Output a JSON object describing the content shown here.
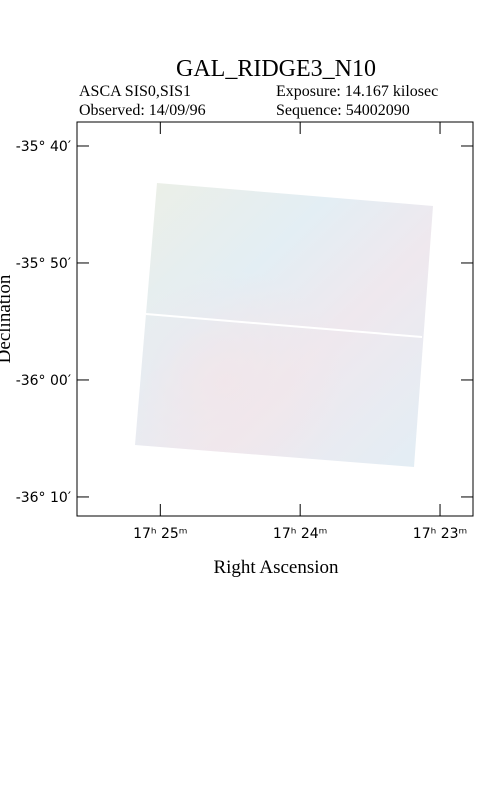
{
  "chart_data": {
    "type": "image",
    "title": "GAL_RIDGE3_N10",
    "instrument": "ASCA SIS0,SIS1",
    "exposure": "Exposure: 14.167 kilosec",
    "observed": "Observed: 14/09/96",
    "sequence": "Sequence: 54002090",
    "xlabel": "Right Ascension",
    "ylabel": "Declination",
    "xlim": [
      17.4266,
      17.3794
    ],
    "ylim": [
      -36.1938,
      -35.6325
    ],
    "xticks": [
      {
        "value": 17.41667,
        "label": "17ʰ 25ᵐ"
      },
      {
        "value": 17.4,
        "label": "17ʰ 24ᵐ"
      },
      {
        "value": 17.38333,
        "label": "17ʰ 23ᵐ"
      }
    ],
    "yticks": [
      {
        "value": -35.66667,
        "label": "-35° 40′"
      },
      {
        "value": -35.83333,
        "label": "-35° 50′"
      },
      {
        "value": -36.0,
        "label": "-36° 00′"
      },
      {
        "value": -36.16667,
        "label": "-36° 10′"
      }
    ]
  }
}
